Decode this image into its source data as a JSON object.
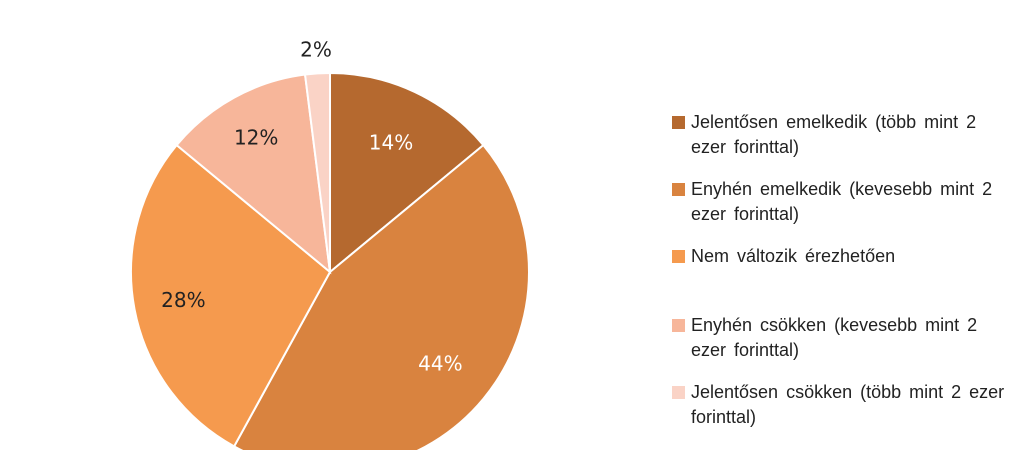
{
  "chart_data": {
    "type": "pie",
    "slices": [
      {
        "label": "Jelentősen emelkedik (több mint 2 ezer forinttal)",
        "value": 14,
        "display": "14%",
        "color": "#b5692f",
        "text_color": "#ffffff"
      },
      {
        "label": "Enyhén emelkedik (kevesebb mint 2 ezer forinttal)",
        "value": 44,
        "display": "44%",
        "color": "#d9833f",
        "text_color": "#ffffff"
      },
      {
        "label": "Nem változik érezhetően",
        "value": 28,
        "display": "28%",
        "color": "#f59a4e",
        "text_color": "#222222"
      },
      {
        "label": "Enyhén csökken (kevesebb mint 2 ezer forinttal)",
        "value": 12,
        "display": "12%",
        "color": "#f7b69a",
        "text_color": "#222222"
      },
      {
        "label": "Jelentősen csökken (több mint 2 ezer forinttal)",
        "value": 2,
        "display": "2%",
        "color": "#fad3c6",
        "text_color": "#222222"
      }
    ],
    "legend_position": "right"
  },
  "legend": {
    "items": [
      {
        "text": "Jelentősen emelkedik (több mint 2 ezer forinttal)",
        "color": "#b5692f"
      },
      {
        "text": "Enyhén emelkedik (kevesebb mint 2 ezer forinttal)",
        "color": "#d9833f"
      },
      {
        "text": "Nem változik érezhetően",
        "color": "#f59a4e"
      },
      {
        "text": "Enyhén csökken (kevesebb mint 2 ezer forinttal)",
        "color": "#f7b69a"
      },
      {
        "text": "Jelentősen csökken (több mint 2 ezer forinttal)",
        "color": "#fad3c6"
      }
    ]
  }
}
